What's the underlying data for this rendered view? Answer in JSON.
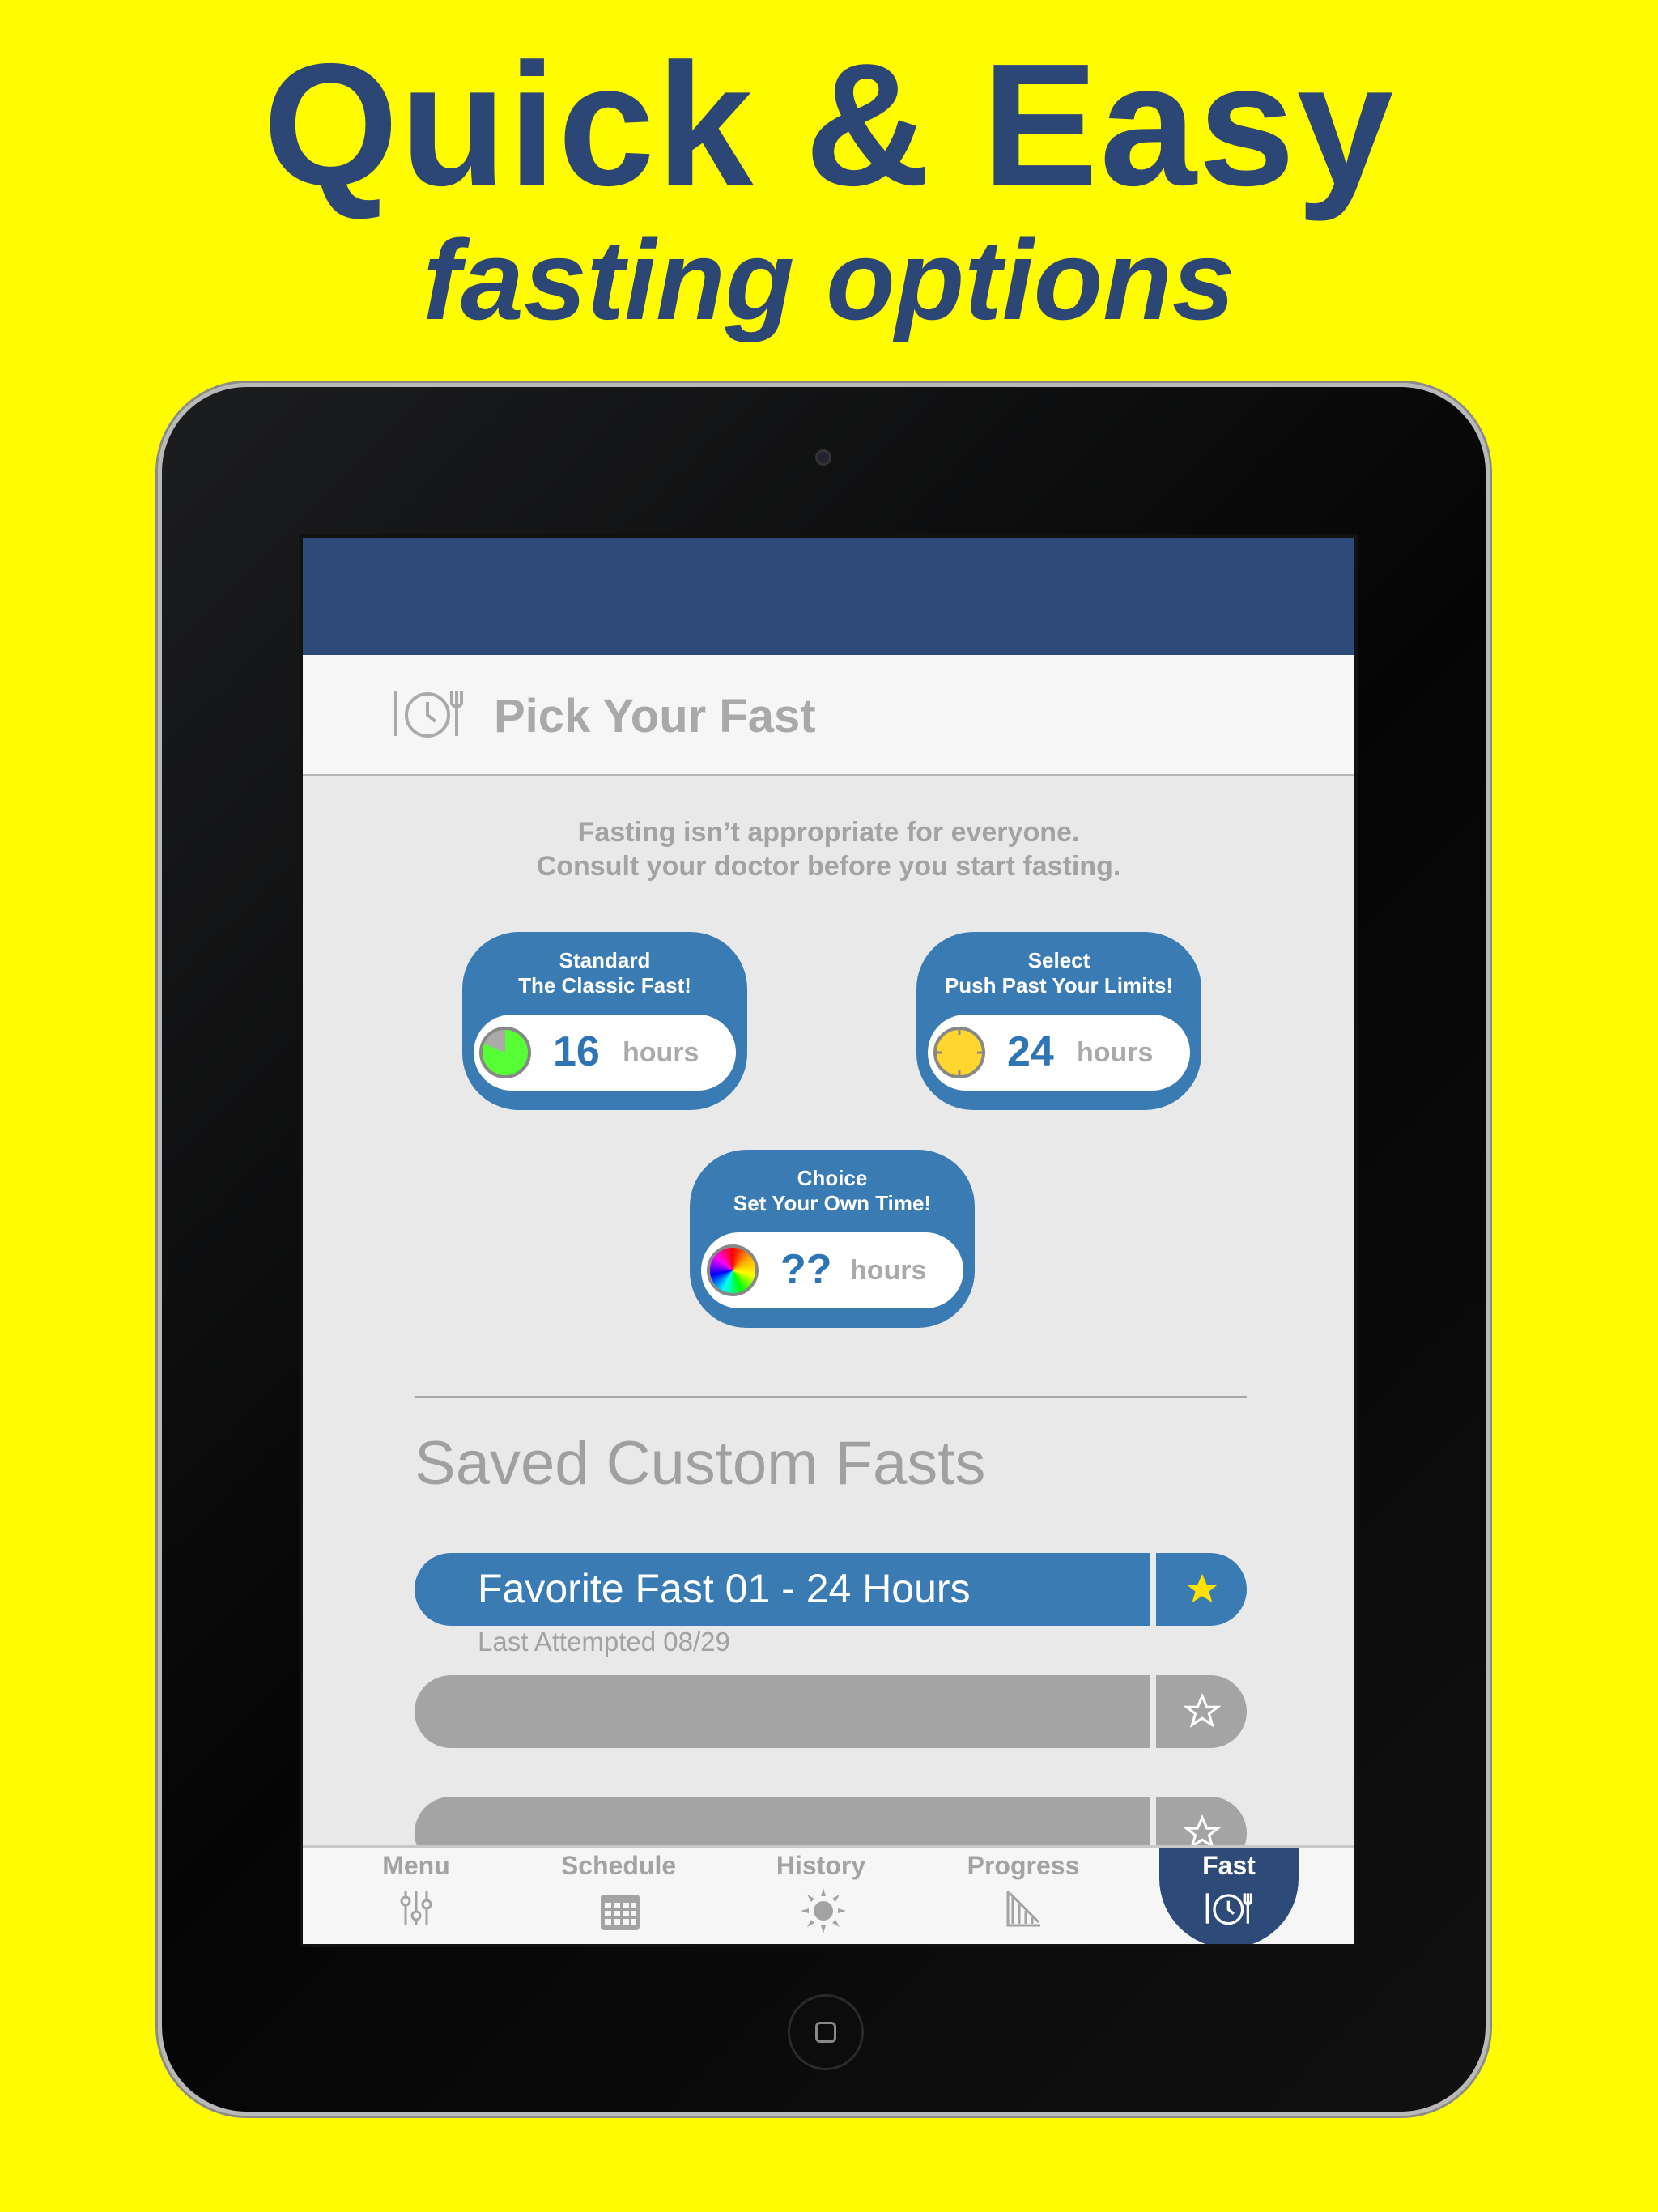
{
  "promo": {
    "headline": "Quick & Easy",
    "subheadline": "fasting options"
  },
  "header": {
    "title": "Pick Your Fast",
    "icon": "plate-clock-icon"
  },
  "disclaimer": {
    "line1": "Fasting isn’t appropriate for everyone.",
    "line2": "Consult your doctor before you start fasting."
  },
  "fast_options": [
    {
      "name": "Standard",
      "tagline": "The Classic Fast!",
      "hours": "16",
      "unit": "hours",
      "icon": "green-clock-icon",
      "color": "#55ff33"
    },
    {
      "name": "Select",
      "tagline": "Push Past Your Limits!",
      "hours": "24",
      "unit": "hours",
      "icon": "yellow-clock-icon",
      "color": "#ffd52e"
    },
    {
      "name": "Choice",
      "tagline": "Set Your Own Time!",
      "hours": "??",
      "unit": "hours",
      "icon": "rainbow-clock-icon"
    }
  ],
  "saved": {
    "title": "Saved Custom Fasts",
    "items": [
      {
        "name": "Favorite Fast 01 - 24 Hours",
        "last_attempted": "Last Attempted 08/29",
        "favorite": true
      },
      {
        "name": "",
        "favorite": false
      },
      {
        "name": "",
        "favorite": false
      }
    ]
  },
  "nav": {
    "tabs": [
      {
        "label": "Menu",
        "icon": "sliders-icon"
      },
      {
        "label": "Schedule",
        "icon": "calendar-icon"
      },
      {
        "label": "History",
        "icon": "sun-icon"
      },
      {
        "label": "Progress",
        "icon": "chart-down-icon"
      },
      {
        "label": "Fast",
        "icon": "plate-clock-icon",
        "active": true
      }
    ]
  },
  "colors": {
    "brand": "#2d4a78",
    "card": "#3a7bb4",
    "background": "#fffc00",
    "favorite_star": "#ffe200"
  }
}
